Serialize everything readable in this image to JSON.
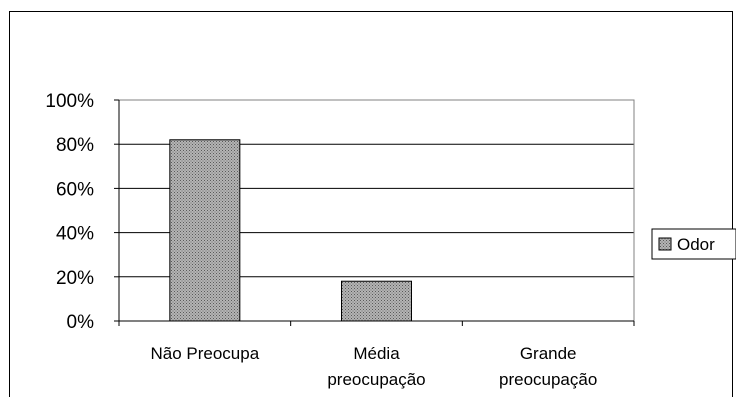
{
  "chart_data": {
    "type": "bar",
    "categories": [
      [
        "Não Preocupa"
      ],
      [
        "Média",
        "preocupação"
      ],
      [
        "Grande",
        "preocupação"
      ]
    ],
    "series": [
      {
        "name": "Odor",
        "values": [
          82,
          18,
          0
        ]
      }
    ],
    "yticks": [
      "0%",
      "20%",
      "40%",
      "60%",
      "80%",
      "100%"
    ],
    "ylim": [
      0,
      100
    ],
    "grid": true,
    "legend": "right",
    "colors": {
      "bar": "#9a9a9a",
      "plot_border": "#808080",
      "grid": "#000000"
    }
  }
}
